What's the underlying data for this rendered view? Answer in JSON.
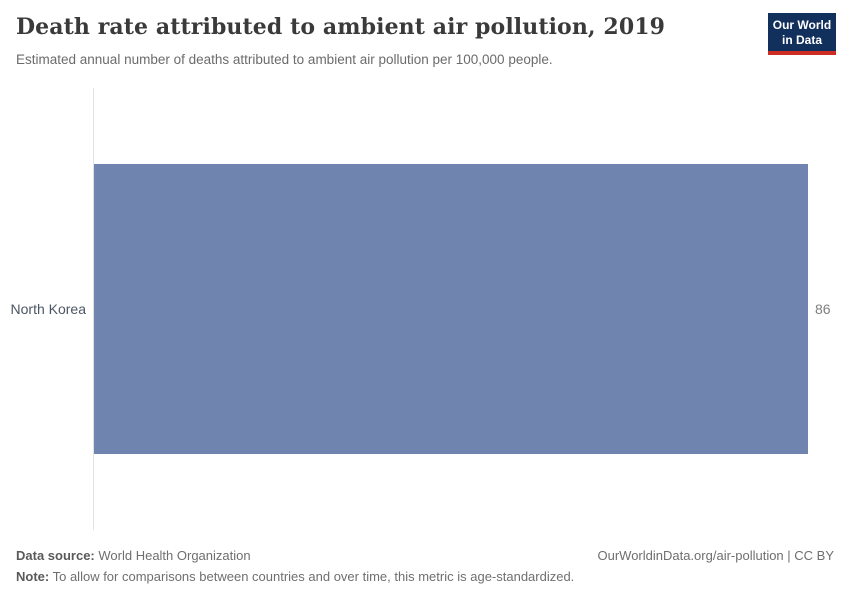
{
  "header": {
    "title": "Death rate attributed to ambient air pollution, 2019",
    "subtitle": "Estimated annual number of deaths attributed to ambient air pollution per 100,000 people.",
    "logo_line1": "Our World",
    "logo_line2": "in Data"
  },
  "chart_data": {
    "type": "bar",
    "orientation": "horizontal",
    "categories": [
      "North Korea"
    ],
    "values": [
      86
    ],
    "value_labels": [
      "86"
    ],
    "title": "Death rate attributed to ambient air pollution, 2019",
    "subtitle": "Estimated annual number of deaths attributed to ambient air pollution per 100,000 people.",
    "xlabel": "",
    "ylabel": "",
    "xlim": [
      0,
      86
    ],
    "grid": false,
    "legend": "none",
    "bar_color": "#6f84ae"
  },
  "colors": {
    "bar": "#6f84ae",
    "logo_navy": "#12305c",
    "logo_red": "#cf2d23",
    "axis_line": "#e2e2e2"
  },
  "footer": {
    "source_label": "Data source:",
    "source_value": "World Health Organization",
    "note_label": "Note:",
    "note_value": "To allow for comparisons between countries and over time, this metric is age-standardized.",
    "link": "OurWorldinData.org/air-pollution | CC BY"
  }
}
